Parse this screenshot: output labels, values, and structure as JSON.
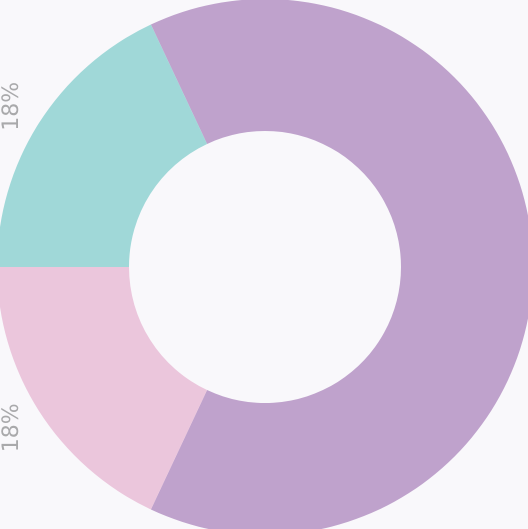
{
  "chart_data": {
    "type": "donut",
    "categories": [
      null,
      null,
      null
    ],
    "values": [
      64,
      18,
      18
    ],
    "value_labels": [
      null,
      "18%",
      "18%"
    ],
    "colors": [
      "#bfa2cc",
      "#ebc6dc",
      "#a0d8d8"
    ]
  }
}
